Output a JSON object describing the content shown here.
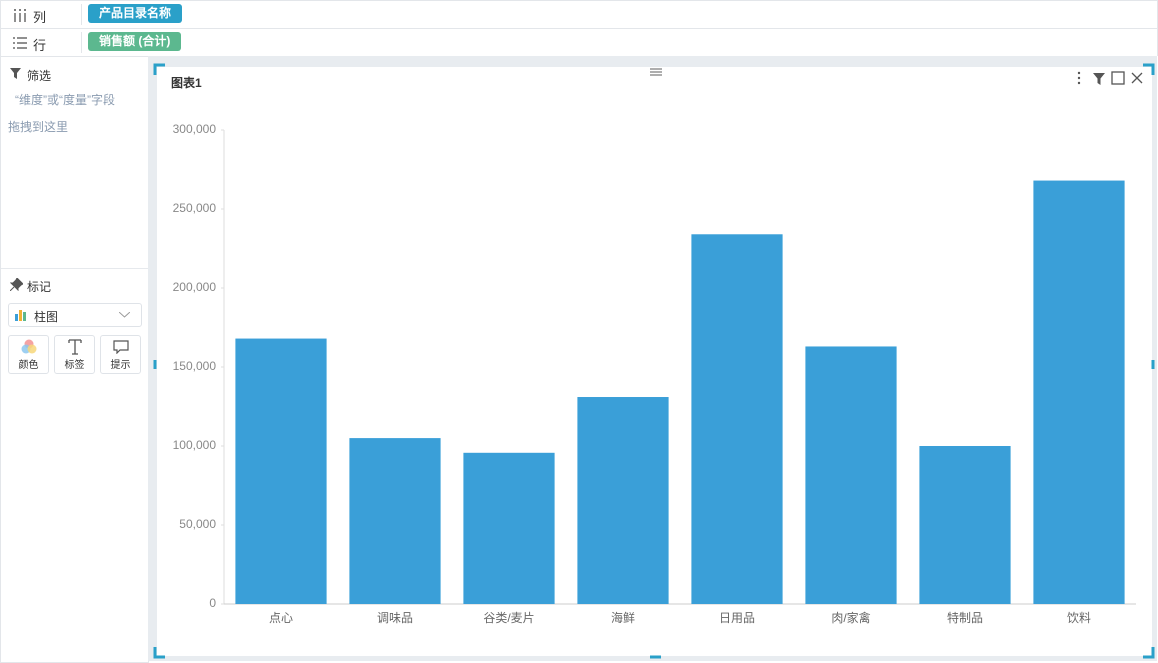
{
  "shelves": {
    "columns": {
      "label": "列",
      "field": "产品目录名称"
    },
    "rows": {
      "label": "行",
      "field": "销售额 (合计)"
    }
  },
  "filter": {
    "title": "筛选",
    "hint": "“维度”或“度量”字段",
    "hint2": "拖拽到这里"
  },
  "marks": {
    "title": "标记",
    "chart_type": "柱图",
    "buttons": [
      "颜色",
      "标签",
      "提示"
    ]
  },
  "chart_data": {
    "type": "bar",
    "title": "图表1",
    "categories": [
      "点心",
      "调味品",
      "谷类/麦片",
      "海鲜",
      "日用品",
      "肉/家禽",
      "特制品",
      "饮料"
    ],
    "values": [
      168000,
      105000,
      95700,
      131000,
      234000,
      163000,
      100000,
      268000
    ],
    "color": "#3a9fd8",
    "ylim": [
      0,
      300000
    ],
    "yticks": [
      0,
      {
        "value": 50000,
        "label": "50,000"
      },
      {
        "value": 100000,
        "label": "100,000"
      },
      {
        "value": 150000,
        "label": "150,000"
      },
      {
        "value": 200000,
        "label": "200,000"
      },
      {
        "value": 250000,
        "label": "250,000"
      },
      {
        "value": 300000,
        "label": "300,000"
      }
    ],
    "grid": false
  }
}
